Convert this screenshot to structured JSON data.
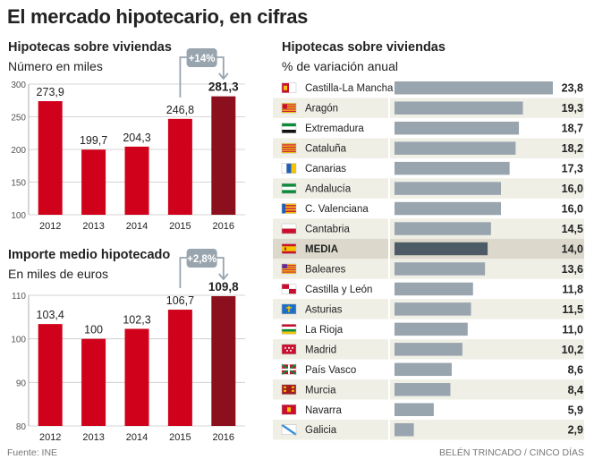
{
  "title": "El mercado hipotecario, en cifras",
  "footer": {
    "source": "Fuente: INE",
    "credit": "BELÉN TRINCADO / CINCO DÍAS"
  },
  "colors": {
    "bar": "#d0021b",
    "bar_highlight": "#8b0f1d",
    "hbar": "#98a4ae",
    "hbar_media": "#4d5b67",
    "stripe": "#efefe6",
    "media_bg": "#dcd9cc",
    "badge": "#98a4ae"
  },
  "chart_data": [
    {
      "type": "bar",
      "title": "Hipotecas sobre viviendas",
      "subtitle": "Número en miles",
      "categories": [
        "2012",
        "2013",
        "2014",
        "2015",
        "2016"
      ],
      "values": [
        273.9,
        199.7,
        204.3,
        246.8,
        281.3
      ],
      "labels": [
        "273,9",
        "199,7",
        "204,3",
        "246,8",
        "281,3"
      ],
      "highlight_index": 4,
      "ylim": [
        100,
        300
      ],
      "yticks": [
        100,
        150,
        200,
        250,
        300
      ],
      "annotation": "+14%"
    },
    {
      "type": "bar",
      "title": "Importe medio hipotecado",
      "subtitle": "En miles de euros",
      "categories": [
        "2012",
        "2013",
        "2014",
        "2015",
        "2016"
      ],
      "values": [
        103.4,
        100,
        102.3,
        106.7,
        109.8
      ],
      "labels": [
        "103,4",
        "100",
        "102,3",
        "106,7",
        "109,8"
      ],
      "highlight_index": 4,
      "ylim": [
        80,
        110
      ],
      "yticks": [
        80,
        90,
        100,
        110
      ],
      "annotation": "+2,8%"
    },
    {
      "type": "bar",
      "orientation": "horizontal",
      "title": "Hipotecas sobre viviendas",
      "subtitle": "% de variación anual",
      "xlim": [
        0,
        23.8
      ],
      "regions": [
        {
          "name": "Castilla-La Mancha",
          "value": 23.8,
          "label": "23,8",
          "flag": "castilla-la-mancha-flag"
        },
        {
          "name": "Aragón",
          "value": 19.3,
          "label": "19,3",
          "flag": "aragon-flag"
        },
        {
          "name": "Extremadura",
          "value": 18.7,
          "label": "18,7",
          "flag": "extremadura-flag"
        },
        {
          "name": "Cataluña",
          "value": 18.2,
          "label": "18,2",
          "flag": "cataluna-flag"
        },
        {
          "name": "Canarias",
          "value": 17.3,
          "label": "17,3",
          "flag": "canarias-flag"
        },
        {
          "name": "Andalucía",
          "value": 16.0,
          "label": "16,0",
          "flag": "andalucia-flag"
        },
        {
          "name": "C. Valenciana",
          "value": 16.0,
          "label": "16,0",
          "flag": "valenciana-flag"
        },
        {
          "name": "Cantabria",
          "value": 14.5,
          "label": "14,5",
          "flag": "cantabria-flag"
        },
        {
          "name": "MEDIA",
          "value": 14.0,
          "label": "14,0",
          "flag": "spain-flag",
          "is_media": true
        },
        {
          "name": "Baleares",
          "value": 13.6,
          "label": "13,6",
          "flag": "baleares-flag"
        },
        {
          "name": "Castilla y León",
          "value": 11.8,
          "label": "11,8",
          "flag": "castilla-leon-flag"
        },
        {
          "name": "Asturias",
          "value": 11.5,
          "label": "11,5",
          "flag": "asturias-flag"
        },
        {
          "name": "La Rioja",
          "value": 11.0,
          "label": "11,0",
          "flag": "rioja-flag"
        },
        {
          "name": "Madrid",
          "value": 10.2,
          "label": "10,2",
          "flag": "madrid-flag"
        },
        {
          "name": "País Vasco",
          "value": 8.6,
          "label": "8,6",
          "flag": "pais-vasco-flag"
        },
        {
          "name": "Murcia",
          "value": 8.4,
          "label": "8,4",
          "flag": "murcia-flag"
        },
        {
          "name": "Navarra",
          "value": 5.9,
          "label": "5,9",
          "flag": "navarra-flag"
        },
        {
          "name": "Galicia",
          "value": 2.9,
          "label": "2,9",
          "flag": "galicia-flag"
        }
      ]
    }
  ]
}
